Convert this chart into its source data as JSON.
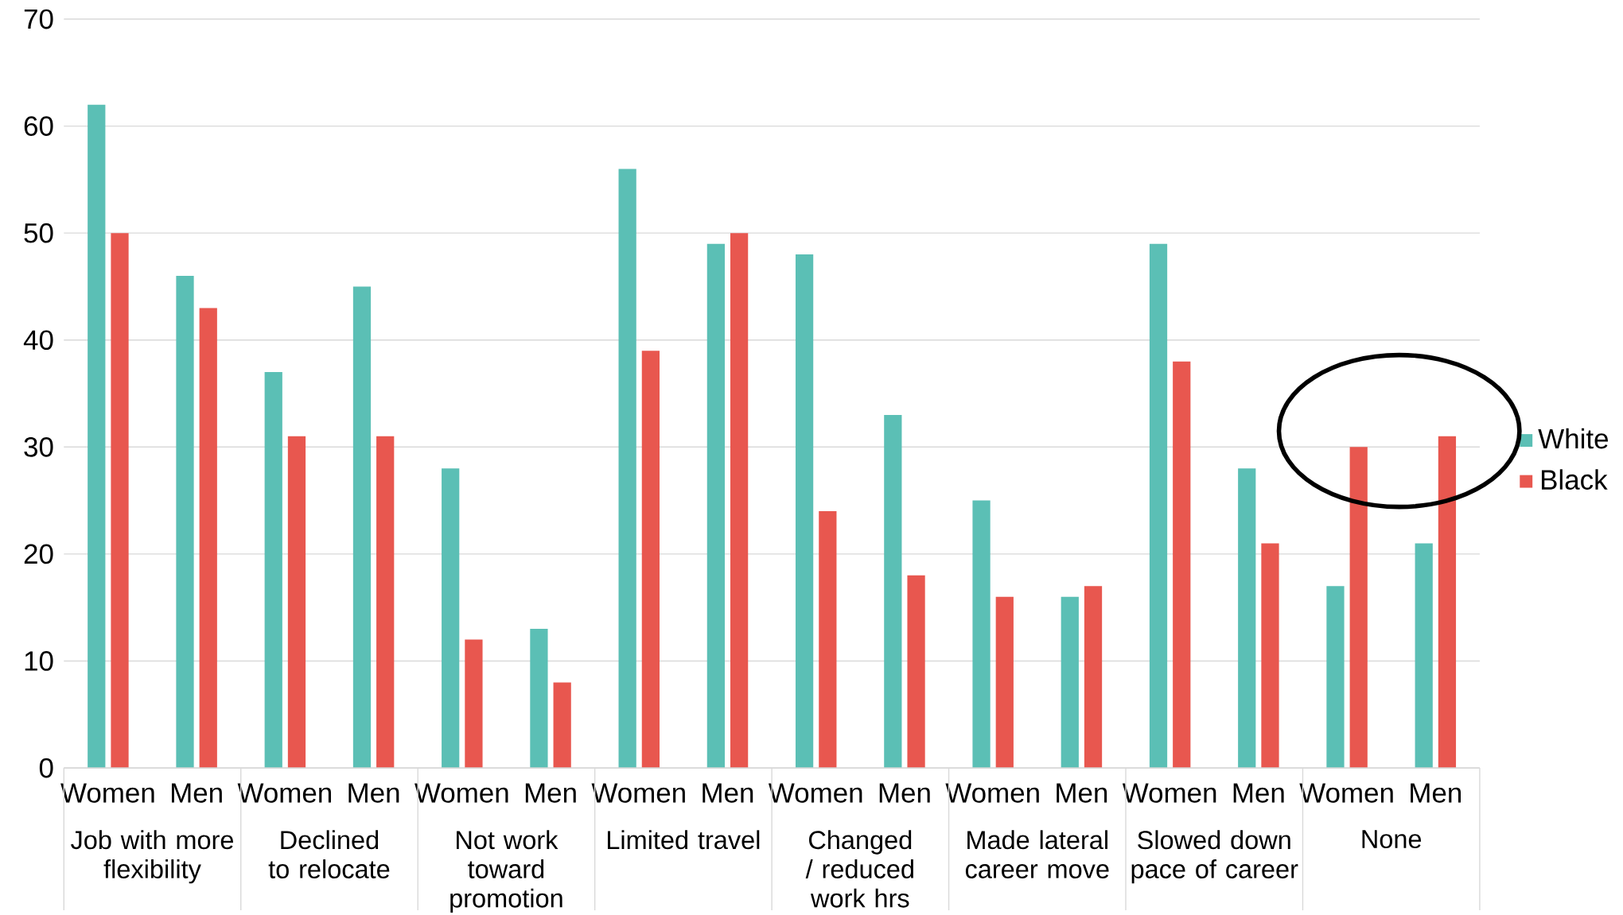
{
  "chart_data": {
    "type": "bar",
    "categories": [
      "Women",
      "Men",
      "Women",
      "Men",
      "Women",
      "Men",
      "Women",
      "Men",
      "Women",
      "Men",
      "Women",
      "Men",
      "Women",
      "Men",
      "Women",
      "Men"
    ],
    "series": [
      {
        "name": "White",
        "color": "#5bbfb5",
        "values": [
          62,
          46,
          37,
          45,
          28,
          13,
          56,
          49,
          48,
          33,
          25,
          16,
          49,
          28,
          17,
          21
        ]
      },
      {
        "name": "Black",
        "color": "#e8574f",
        "values": [
          50,
          43,
          31,
          31,
          12,
          8,
          39,
          50,
          24,
          18,
          16,
          17,
          38,
          21,
          30,
          31
        ]
      }
    ],
    "annotations": [
      "Job with more flexibility",
      "Declined to relocate",
      "Not work toward promotion",
      "Limited travel",
      "Changed / reduced work hrs",
      "Made lateral career move",
      "Slowed down pace of career",
      "None"
    ],
    "ylim": [
      0,
      70
    ],
    "yticks": [
      0,
      10,
      20,
      30,
      40,
      50,
      60,
      70
    ],
    "grid": "y",
    "legend": "right"
  }
}
